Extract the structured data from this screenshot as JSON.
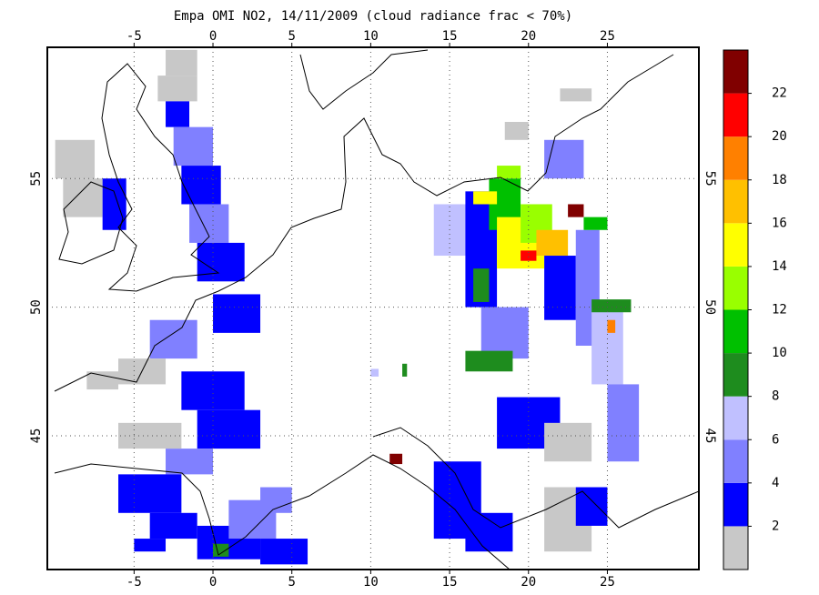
{
  "title": "Empa OMI NO2, 14/11/2009 (cloud radiance frac < 70%)",
  "map": {
    "xlim": [
      -10.5,
      30.8
    ],
    "ylim": [
      39.8,
      60.1
    ],
    "xticks": [
      -5,
      0,
      5,
      10,
      15,
      20,
      25
    ],
    "yticks": [
      45,
      50,
      55
    ],
    "grid": true
  },
  "colorbar": {
    "lim": [
      0,
      24
    ],
    "ticks": [
      2,
      4,
      6,
      8,
      10,
      12,
      14,
      16,
      18,
      20,
      22
    ],
    "colors": [
      "#c8c8c8",
      "#0000ff",
      "#8080ff",
      "#c0c0ff",
      "#1e8c1e",
      "#00c000",
      "#99ff00",
      "#ffff00",
      "#ffc000",
      "#ff8000",
      "#ff0000",
      "#800000"
    ]
  },
  "cells": [
    [
      -3,
      -1,
      59,
      60,
      1
    ],
    [
      -3.5,
      -1,
      58,
      59,
      1
    ],
    [
      -3,
      -1.5,
      57,
      58,
      3
    ],
    [
      -2.5,
      0,
      55.5,
      57,
      5
    ],
    [
      -2,
      0.5,
      54,
      55.5,
      3
    ],
    [
      -1.5,
      1,
      52.5,
      54,
      5
    ],
    [
      -1,
      2,
      51,
      52.5,
      3
    ],
    [
      -10,
      -7.5,
      55,
      56.5,
      1
    ],
    [
      -9.5,
      -7,
      53.5,
      55,
      1
    ],
    [
      -7,
      -5.5,
      53,
      55,
      3
    ],
    [
      0,
      3,
      49,
      50.5,
      3
    ],
    [
      -4,
      -1,
      48,
      49.5,
      5
    ],
    [
      -6,
      -3,
      47,
      48,
      1
    ],
    [
      -8,
      -6,
      46.8,
      47.5,
      1
    ],
    [
      -2,
      2,
      46,
      47.5,
      3
    ],
    [
      -1,
      3,
      44.5,
      46,
      3
    ],
    [
      -3,
      0,
      43.5,
      44.5,
      5
    ],
    [
      -6,
      -2,
      44.5,
      45.5,
      1
    ],
    [
      -6,
      -2,
      42,
      43.5,
      3
    ],
    [
      -4,
      -1,
      41,
      42,
      3
    ],
    [
      -5,
      -3,
      40.5,
      41,
      3
    ],
    [
      -1,
      3,
      40.2,
      41.5,
      3
    ],
    [
      0,
      1,
      40.3,
      40.8,
      9
    ],
    [
      1,
      4,
      41,
      42.5,
      5
    ],
    [
      3,
      6,
      40,
      41,
      3
    ],
    [
      3,
      5,
      42,
      43,
      5
    ],
    [
      10,
      10.5,
      47.3,
      47.6,
      7
    ],
    [
      12,
      12.3,
      47.3,
      47.8,
      9
    ],
    [
      14,
      16.5,
      52,
      54,
      7
    ],
    [
      16,
      18,
      50,
      54.5,
      3
    ],
    [
      16.5,
      17.5,
      50.2,
      51.5,
      9
    ],
    [
      17.5,
      19.5,
      53,
      55,
      11
    ],
    [
      18,
      21,
      51.5,
      53.5,
      15
    ],
    [
      19.5,
      21.5,
      52.5,
      54,
      13
    ],
    [
      20.5,
      22.5,
      52,
      53,
      17
    ],
    [
      19.5,
      20.5,
      51.8,
      52.2,
      21
    ],
    [
      22.5,
      23.5,
      53.5,
      54,
      23
    ],
    [
      18,
      19.5,
      55,
      55.5,
      13
    ],
    [
      16.5,
      18,
      54,
      54.5,
      15
    ],
    [
      21,
      23,
      49.5,
      52,
      3
    ],
    [
      23,
      24.5,
      48.5,
      53,
      5
    ],
    [
      24,
      26,
      47,
      50,
      7
    ],
    [
      25,
      27,
      44,
      47,
      5
    ],
    [
      21,
      23.5,
      55,
      56.5,
      5
    ],
    [
      17,
      20,
      48,
      50,
      5
    ],
    [
      16,
      19,
      47.5,
      48.3,
      9
    ],
    [
      18,
      22,
      44.5,
      46.5,
      3
    ],
    [
      21,
      24,
      44,
      45.5,
      1
    ],
    [
      14,
      17,
      41,
      44,
      3
    ],
    [
      16,
      19,
      40.5,
      42,
      3
    ],
    [
      21,
      24,
      40.5,
      43,
      1
    ],
    [
      23,
      25,
      41.5,
      43,
      3
    ],
    [
      11.2,
      12,
      43.9,
      44.3,
      23
    ],
    [
      18.5,
      20,
      56.5,
      57.2,
      1
    ],
    [
      22,
      24,
      58,
      58.5,
      1
    ],
    [
      23.5,
      25,
      53,
      53.5,
      11
    ],
    [
      24,
      26.5,
      49.8,
      50.3,
      9
    ],
    [
      25,
      25.5,
      49,
      49.5,
      19
    ]
  ]
}
